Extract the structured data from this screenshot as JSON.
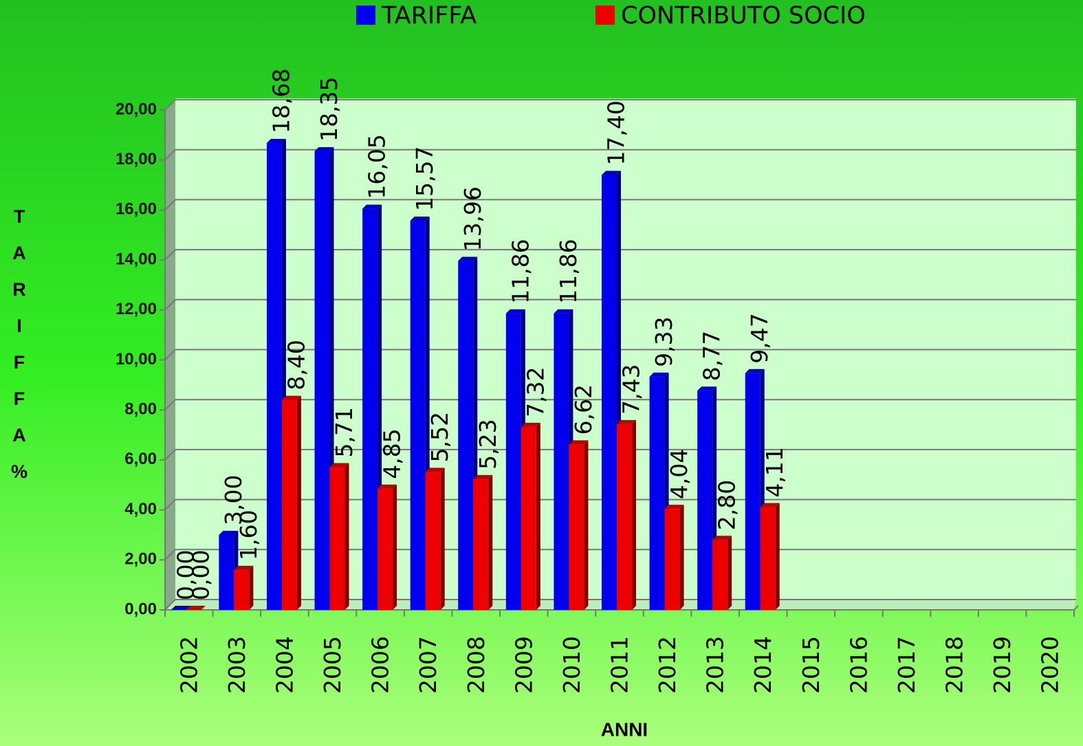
{
  "chart_data": {
    "type": "bar",
    "categories": [
      "2002",
      "2003",
      "2004",
      "2005",
      "2006",
      "2007",
      "2008",
      "2009",
      "2010",
      "2011",
      "2012",
      "2013",
      "2014",
      "2015",
      "2016",
      "2017",
      "2018",
      "2019",
      "2020"
    ],
    "series": [
      {
        "name": "TARIFFA",
        "color": "#0000ee",
        "values": [
          0,
          3,
          18.68,
          18.35,
          16.05,
          15.57,
          13.96,
          11.86,
          11.86,
          17.4,
          9.33,
          8.77,
          9.47,
          null,
          null,
          null,
          null,
          null,
          null
        ],
        "value_labels": [
          "0,00",
          "3,00",
          "18,68",
          "18,35",
          "16,05",
          "15,57",
          "13,96",
          "11,86",
          "11,86",
          "17,40",
          "9,33",
          "8,77",
          "9,47",
          null,
          null,
          null,
          null,
          null,
          null
        ]
      },
      {
        "name": "CONTRIBUTO SOCIO",
        "color": "#ee0000",
        "values": [
          0,
          1.6,
          8.4,
          5.71,
          4.85,
          5.52,
          5.23,
          7.32,
          6.62,
          7.43,
          4.04,
          2.8,
          4.11,
          null,
          null,
          null,
          null,
          null,
          null
        ],
        "value_labels": [
          "0,00",
          "1,60",
          "8,40",
          "5,71",
          "4,85",
          "5,52",
          "5,23",
          "7,32",
          "6,62",
          "7,43",
          "4,04",
          "2,80",
          "4,11",
          null,
          null,
          null,
          null,
          null,
          null
        ]
      }
    ],
    "x_label": "ANNI",
    "y_label": "TARIFFA%",
    "ylim": [
      0,
      20
    ],
    "yticks": [
      {
        "value": 0,
        "label": "0,00"
      },
      {
        "value": 2,
        "label": "2,00"
      },
      {
        "value": 4,
        "label": "4,00"
      },
      {
        "value": 6,
        "label": "6,00"
      },
      {
        "value": 8,
        "label": "8,00"
      },
      {
        "value": 10,
        "label": "10,00"
      },
      {
        "value": 12,
        "label": "12,00"
      },
      {
        "value": 14,
        "label": "14,00"
      },
      {
        "value": 16,
        "label": "16,00"
      },
      {
        "value": 18,
        "label": "18,00"
      },
      {
        "value": 20,
        "label": "20,00"
      }
    ],
    "grid": true,
    "legend": "top"
  }
}
